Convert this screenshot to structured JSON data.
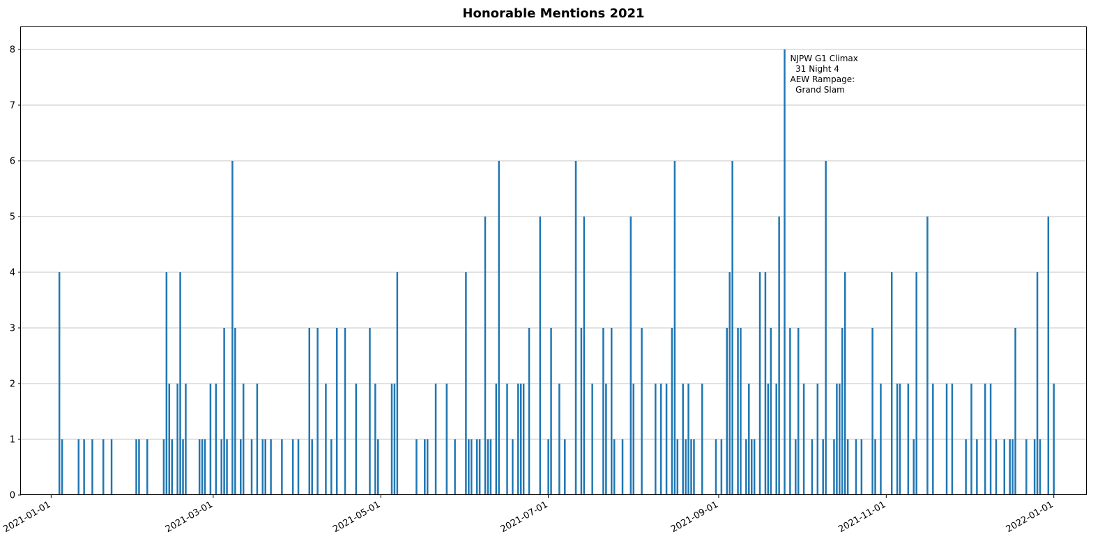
{
  "chart_data": {
    "type": "bar",
    "title": "Honorable Mentions 2021",
    "xlabel": "",
    "ylabel": "",
    "x_axis": "date",
    "xlim": [
      "2020-12-21",
      "2022-01-13"
    ],
    "ylim": [
      0,
      8.4
    ],
    "grid": "y",
    "bar_color": "#1f77b4",
    "x_ticks": [
      "2021-01-01",
      "2021-03-01",
      "2021-05-01",
      "2021-07-01",
      "2021-09-01",
      "2021-11-01",
      "2022-01-01"
    ],
    "y_ticks": [
      "0",
      "1",
      "2",
      "3",
      "4",
      "5",
      "6",
      "7",
      "8"
    ],
    "points": [
      [
        "2021-01-04",
        4
      ],
      [
        "2021-01-05",
        1
      ],
      [
        "2021-01-11",
        1
      ],
      [
        "2021-01-13",
        1
      ],
      [
        "2021-01-16",
        1
      ],
      [
        "2021-01-20",
        1
      ],
      [
        "2021-01-23",
        1
      ],
      [
        "2021-02-01",
        1
      ],
      [
        "2021-02-02",
        1
      ],
      [
        "2021-02-05",
        1
      ],
      [
        "2021-02-11",
        1
      ],
      [
        "2021-02-12",
        4
      ],
      [
        "2021-02-13",
        2
      ],
      [
        "2021-02-14",
        1
      ],
      [
        "2021-02-16",
        2
      ],
      [
        "2021-02-17",
        4
      ],
      [
        "2021-02-18",
        1
      ],
      [
        "2021-02-19",
        2
      ],
      [
        "2021-02-24",
        1
      ],
      [
        "2021-02-25",
        1
      ],
      [
        "2021-02-26",
        1
      ],
      [
        "2021-02-28",
        2
      ],
      [
        "2021-03-02",
        2
      ],
      [
        "2021-03-04",
        1
      ],
      [
        "2021-03-05",
        3
      ],
      [
        "2021-03-06",
        1
      ],
      [
        "2021-03-08",
        6
      ],
      [
        "2021-03-09",
        3
      ],
      [
        "2021-03-11",
        1
      ],
      [
        "2021-03-12",
        2
      ],
      [
        "2021-03-15",
        1
      ],
      [
        "2021-03-17",
        2
      ],
      [
        "2021-03-19",
        1
      ],
      [
        "2021-03-20",
        1
      ],
      [
        "2021-03-22",
        1
      ],
      [
        "2021-03-26",
        1
      ],
      [
        "2021-03-30",
        1
      ],
      [
        "2021-04-01",
        1
      ],
      [
        "2021-04-05",
        3
      ],
      [
        "2021-04-06",
        1
      ],
      [
        "2021-04-08",
        3
      ],
      [
        "2021-04-11",
        2
      ],
      [
        "2021-04-13",
        1
      ],
      [
        "2021-04-15",
        3
      ],
      [
        "2021-04-18",
        3
      ],
      [
        "2021-04-22",
        2
      ],
      [
        "2021-04-27",
        3
      ],
      [
        "2021-04-29",
        2
      ],
      [
        "2021-04-30",
        1
      ],
      [
        "2021-05-05",
        2
      ],
      [
        "2021-05-06",
        2
      ],
      [
        "2021-05-07",
        4
      ],
      [
        "2021-05-14",
        1
      ],
      [
        "2021-05-17",
        1
      ],
      [
        "2021-05-18",
        1
      ],
      [
        "2021-05-21",
        2
      ],
      [
        "2021-05-25",
        2
      ],
      [
        "2021-05-28",
        1
      ],
      [
        "2021-06-01",
        4
      ],
      [
        "2021-06-02",
        1
      ],
      [
        "2021-06-03",
        1
      ],
      [
        "2021-06-05",
        1
      ],
      [
        "2021-06-06",
        1
      ],
      [
        "2021-06-08",
        5
      ],
      [
        "2021-06-09",
        1
      ],
      [
        "2021-06-10",
        1
      ],
      [
        "2021-06-12",
        2
      ],
      [
        "2021-06-13",
        6
      ],
      [
        "2021-06-16",
        2
      ],
      [
        "2021-06-18",
        1
      ],
      [
        "2021-06-20",
        2
      ],
      [
        "2021-06-21",
        2
      ],
      [
        "2021-06-22",
        2
      ],
      [
        "2021-06-24",
        3
      ],
      [
        "2021-06-28",
        5
      ],
      [
        "2021-07-01",
        1
      ],
      [
        "2021-07-02",
        3
      ],
      [
        "2021-07-05",
        2
      ],
      [
        "2021-07-07",
        1
      ],
      [
        "2021-07-11",
        6
      ],
      [
        "2021-07-13",
        3
      ],
      [
        "2021-07-14",
        5
      ],
      [
        "2021-07-17",
        2
      ],
      [
        "2021-07-21",
        3
      ],
      [
        "2021-07-22",
        2
      ],
      [
        "2021-07-24",
        3
      ],
      [
        "2021-07-25",
        1
      ],
      [
        "2021-07-28",
        1
      ],
      [
        "2021-07-31",
        5
      ],
      [
        "2021-08-01",
        2
      ],
      [
        "2021-08-04",
        3
      ],
      [
        "2021-08-09",
        2
      ],
      [
        "2021-08-11",
        2
      ],
      [
        "2021-08-13",
        2
      ],
      [
        "2021-08-15",
        3
      ],
      [
        "2021-08-16",
        6
      ],
      [
        "2021-08-17",
        1
      ],
      [
        "2021-08-19",
        2
      ],
      [
        "2021-08-20",
        1
      ],
      [
        "2021-08-21",
        2
      ],
      [
        "2021-08-22",
        1
      ],
      [
        "2021-08-23",
        1
      ],
      [
        "2021-08-26",
        2
      ],
      [
        "2021-08-31",
        1
      ],
      [
        "2021-09-02",
        1
      ],
      [
        "2021-09-04",
        3
      ],
      [
        "2021-09-05",
        4
      ],
      [
        "2021-09-06",
        6
      ],
      [
        "2021-09-08",
        3
      ],
      [
        "2021-09-09",
        3
      ],
      [
        "2021-09-11",
        1
      ],
      [
        "2021-09-12",
        2
      ],
      [
        "2021-09-13",
        1
      ],
      [
        "2021-09-14",
        1
      ],
      [
        "2021-09-16",
        4
      ],
      [
        "2021-09-18",
        4
      ],
      [
        "2021-09-19",
        2
      ],
      [
        "2021-09-20",
        3
      ],
      [
        "2021-09-22",
        2
      ],
      [
        "2021-09-23",
        5
      ],
      [
        "2021-09-25",
        8
      ],
      [
        "2021-09-27",
        3
      ],
      [
        "2021-09-29",
        1
      ],
      [
        "2021-09-30",
        3
      ],
      [
        "2021-10-02",
        2
      ],
      [
        "2021-10-05",
        1
      ],
      [
        "2021-10-07",
        2
      ],
      [
        "2021-10-09",
        1
      ],
      [
        "2021-10-10",
        6
      ],
      [
        "2021-10-13",
        1
      ],
      [
        "2021-10-14",
        2
      ],
      [
        "2021-10-15",
        2
      ],
      [
        "2021-10-16",
        3
      ],
      [
        "2021-10-17",
        4
      ],
      [
        "2021-10-18",
        1
      ],
      [
        "2021-10-21",
        1
      ],
      [
        "2021-10-23",
        1
      ],
      [
        "2021-10-27",
        3
      ],
      [
        "2021-10-28",
        1
      ],
      [
        "2021-10-30",
        2
      ],
      [
        "2021-11-03",
        4
      ],
      [
        "2021-11-05",
        2
      ],
      [
        "2021-11-06",
        2
      ],
      [
        "2021-11-09",
        2
      ],
      [
        "2021-11-11",
        1
      ],
      [
        "2021-11-12",
        4
      ],
      [
        "2021-11-16",
        5
      ],
      [
        "2021-11-18",
        2
      ],
      [
        "2021-11-23",
        2
      ],
      [
        "2021-11-25",
        2
      ],
      [
        "2021-11-30",
        1
      ],
      [
        "2021-12-02",
        2
      ],
      [
        "2021-12-04",
        1
      ],
      [
        "2021-12-07",
        2
      ],
      [
        "2021-12-09",
        2
      ],
      [
        "2021-12-11",
        1
      ],
      [
        "2021-12-14",
        1
      ],
      [
        "2021-12-16",
        1
      ],
      [
        "2021-12-17",
        1
      ],
      [
        "2021-12-18",
        3
      ],
      [
        "2021-12-22",
        1
      ],
      [
        "2021-12-25",
        1
      ],
      [
        "2021-12-26",
        4
      ],
      [
        "2021-12-27",
        1
      ],
      [
        "2021-12-30",
        5
      ],
      [
        "2022-01-01",
        2
      ]
    ],
    "annotations": [
      {
        "date": "2021-09-25",
        "value": 8,
        "lines": [
          "NJPW G1 Climax",
          "  31 Night 4",
          "AEW Rampage:",
          "  Grand Slam"
        ]
      }
    ]
  }
}
